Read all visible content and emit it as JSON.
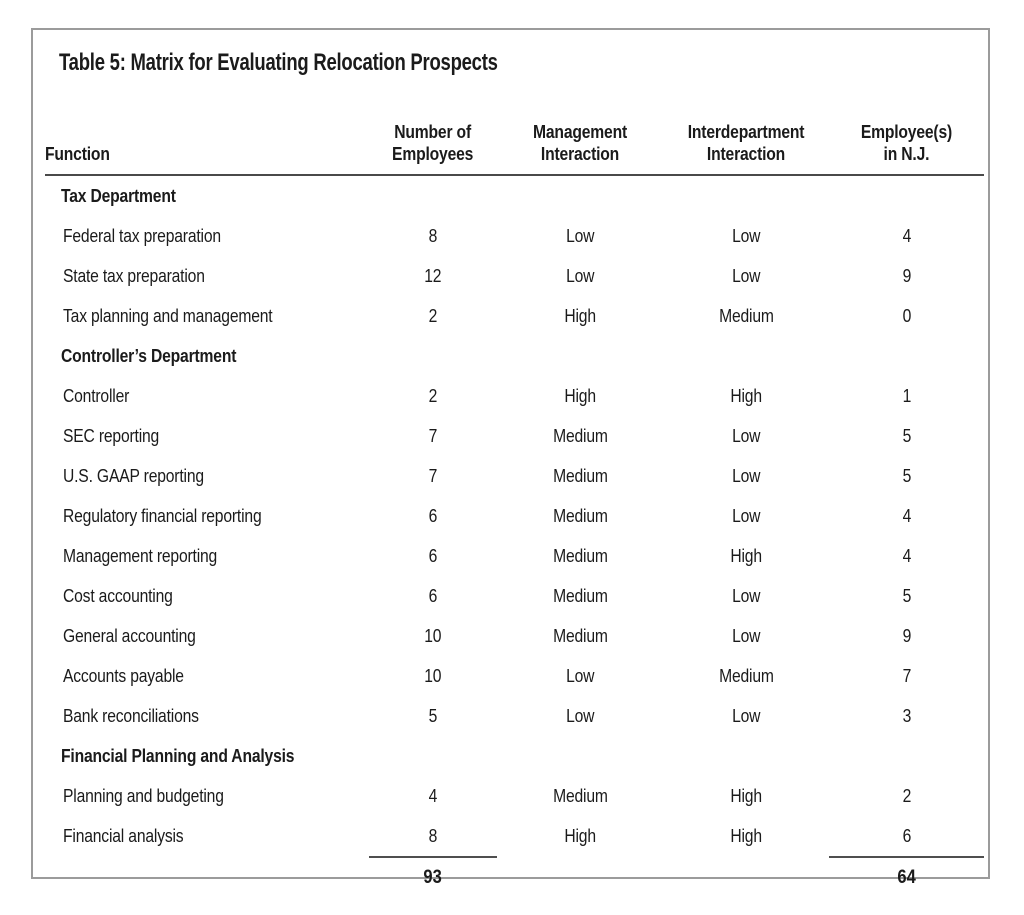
{
  "table": {
    "title": "Table 5: Matrix for Evaluating Relocation Prospects",
    "columns": [
      {
        "key": "function",
        "label": "Function"
      },
      {
        "key": "employees",
        "label": "Number of\nEmployees"
      },
      {
        "key": "mgmt",
        "label": "Management\nInteraction"
      },
      {
        "key": "interdept",
        "label": "Interdepartment\nInteraction"
      },
      {
        "key": "nj",
        "label": "Employee(s)\nin N.J."
      }
    ],
    "rows": [
      {
        "type": "section",
        "function": "Tax Department"
      },
      {
        "type": "data",
        "function": "Federal tax preparation",
        "employees": "8",
        "mgmt": "Low",
        "interdept": "Low",
        "nj": "4"
      },
      {
        "type": "data",
        "function": "State tax preparation",
        "employees": "12",
        "mgmt": "Low",
        "interdept": "Low",
        "nj": "9"
      },
      {
        "type": "data",
        "function": "Tax planning and management",
        "employees": "2",
        "mgmt": "High",
        "interdept": "Medium",
        "nj": "0"
      },
      {
        "type": "section",
        "function": "Controller’s Department"
      },
      {
        "type": "data",
        "function": "Controller",
        "employees": "2",
        "mgmt": "High",
        "interdept": "High",
        "nj": "1"
      },
      {
        "type": "data",
        "function": "SEC reporting",
        "employees": "7",
        "mgmt": "Medium",
        "interdept": "Low",
        "nj": "5"
      },
      {
        "type": "data",
        "function": "U.S. GAAP reporting",
        "employees": "7",
        "mgmt": "Medium",
        "interdept": "Low",
        "nj": "5"
      },
      {
        "type": "data",
        "function": "Regulatory financial reporting",
        "employees": "6",
        "mgmt": "Medium",
        "interdept": "Low",
        "nj": "4"
      },
      {
        "type": "data",
        "function": "Management reporting",
        "employees": "6",
        "mgmt": "Medium",
        "interdept": "High",
        "nj": "4"
      },
      {
        "type": "data",
        "function": "Cost accounting",
        "employees": "6",
        "mgmt": "Medium",
        "interdept": "Low",
        "nj": "5"
      },
      {
        "type": "data",
        "function": "General accounting",
        "employees": "10",
        "mgmt": "Medium",
        "interdept": "Low",
        "nj": "9"
      },
      {
        "type": "data",
        "function": "Accounts payable",
        "employees": "10",
        "mgmt": "Low",
        "interdept": "Medium",
        "nj": "7"
      },
      {
        "type": "data",
        "function": "Bank reconciliations",
        "employees": "5",
        "mgmt": "Low",
        "interdept": "Low",
        "nj": "3"
      },
      {
        "type": "section",
        "function": "Financial Planning and Analysis"
      },
      {
        "type": "data",
        "function": "Planning and budgeting",
        "employees": "4",
        "mgmt": "Medium",
        "interdept": "High",
        "nj": "2"
      },
      {
        "type": "data",
        "function": "Financial analysis",
        "employees": "8",
        "mgmt": "High",
        "interdept": "High",
        "nj": "6"
      }
    ],
    "totals": {
      "employees": "93",
      "nj": "64"
    }
  }
}
